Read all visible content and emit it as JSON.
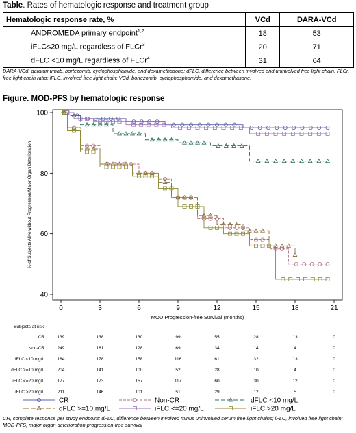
{
  "table": {
    "caption_bold": "Table",
    "caption_rest": ". Rates of hematologic response and treatment group",
    "headers": [
      "Hematologic response rate, %",
      "VCd",
      "DARA-VCd"
    ],
    "rows": [
      {
        "label": "ANDROMEDA primary endpoint",
        "sup": "1,2",
        "vcd": "18",
        "dara": "53"
      },
      {
        "label": "iFLC≤20 mg/L regardless of FLCr",
        "sup": "3",
        "vcd": "20",
        "dara": "71"
      },
      {
        "label": "dFLC <10 mg/L regardless of FLCr",
        "sup": "4",
        "vcd": "31",
        "dara": "64"
      }
    ],
    "footnote": "DARA-VCd, daratumumab, bortezomib, cyclophosphamide, and dexamethasone; dFLC, difference between involved and uninvolved free light chain; FLCr, free light chain ratio; iFLC, involved free light chain; VCd, bortezomib, cyclophosphamide, and dexamethasone."
  },
  "figure": {
    "title": "Figure. MOD-PFS by hematologic response",
    "footnote": "CR, complete response per study endpoint; dFLC, difference between involved minus uninvolved serum free light chains; iFLC, involved free light chain; MOD-PFS, major organ deterioration progression-free survival"
  },
  "chart_data": {
    "type": "line",
    "title": "",
    "xlabel": "MOD Progression-free Survival (months)",
    "ylabel": "% of Subjects Alive without Progression/Major Organ Deterioration",
    "xlim": [
      0,
      21
    ],
    "ylim": [
      40,
      100
    ],
    "xticks": [
      0,
      3,
      6,
      9,
      12,
      15,
      18,
      21
    ],
    "yticks": [
      40,
      60,
      80,
      100
    ],
    "grid": false,
    "series": [
      {
        "name": "CR",
        "color": "#5b5fa8",
        "dash": "",
        "marker": "circle",
        "x": [
          0,
          1.0,
          1.5,
          5.0,
          8.0,
          14.0,
          20.5
        ],
        "y": [
          100,
          99,
          98,
          97,
          96,
          95,
          95
        ]
      },
      {
        "name": "Non-CR",
        "color": "#b07080",
        "dash": "4,2",
        "marker": "circle",
        "x": [
          0,
          0.5,
          1.5,
          3.0,
          6.0,
          7.5,
          8.5,
          10.5,
          12.5,
          14.5,
          16.0,
          17.5,
          20.5
        ],
        "y": [
          100,
          95,
          89,
          83,
          80,
          78,
          72,
          65,
          62,
          58,
          55,
          50,
          50
        ]
      },
      {
        "name": "dFLC <10 mg/L",
        "color": "#2e6e62",
        "dash": "6,3",
        "marker": "triangle",
        "x": [
          0,
          0.5,
          1.5,
          4.0,
          6.5,
          9.0,
          11.5,
          14.5,
          20.5
        ],
        "y": [
          100,
          99,
          96,
          93,
          91,
          90,
          89,
          84,
          84
        ]
      },
      {
        "name": "dFLC >=10 mg/L",
        "color": "#8a6a3a",
        "dash": "8,3",
        "marker": "triangle",
        "x": [
          0,
          0.5,
          1.5,
          3.0,
          5.5,
          7.5,
          8.5,
          10.5,
          12.0,
          14.0,
          16.0,
          18.0
        ],
        "y": [
          100,
          95,
          88,
          83,
          80,
          77,
          72,
          66,
          63,
          61,
          56,
          53
        ]
      },
      {
        "name": "iFLC <=20 mg/L",
        "color": "#9a74b8",
        "dash": "",
        "marker": "square",
        "x": [
          0,
          1.0,
          2.5,
          5.0,
          8.5,
          14.5,
          20.5
        ],
        "y": [
          100,
          98,
          97,
          96,
          95,
          93,
          93
        ]
      },
      {
        "name": "iFLC >20 mg/L",
        "color": "#8a8a30",
        "dash": "",
        "marker": "square",
        "x": [
          0,
          0.5,
          1.5,
          3.0,
          5.5,
          7.5,
          9.0,
          11.0,
          12.5,
          14.5,
          16.5,
          20.5
        ],
        "y": [
          100,
          94,
          87,
          82,
          79,
          75,
          69,
          62,
          60,
          56,
          45,
          45
        ]
      }
    ]
  },
  "risk_table": {
    "title": "Subjects at risk",
    "times": [
      0,
      3,
      6,
      9,
      12,
      15,
      18,
      21
    ],
    "rows": [
      {
        "label": "CR",
        "values": [
          "139",
          "138",
          "130",
          "99",
          "55",
          "28",
          "13",
          "0"
        ]
      },
      {
        "label": "Non-CR",
        "values": [
          "249",
          "181",
          "128",
          "69",
          "34",
          "14",
          "4",
          "0"
        ]
      },
      {
        "label": "dFLC <10 mg/L",
        "values": [
          "184",
          "178",
          "158",
          "116",
          "61",
          "32",
          "13",
          "0"
        ]
      },
      {
        "label": "dFLC >=10 mg/L",
        "values": [
          "204",
          "141",
          "100",
          "52",
          "28",
          "10",
          "4",
          "0"
        ]
      },
      {
        "label": "iFLC <=20 mg/L",
        "values": [
          "177",
          "173",
          "157",
          "117",
          "60",
          "30",
          "12",
          "0"
        ]
      },
      {
        "label": "iFLC >20 mg/L",
        "values": [
          "211",
          "146",
          "101",
          "51",
          "29",
          "12",
          "5",
          "0"
        ]
      }
    ]
  }
}
